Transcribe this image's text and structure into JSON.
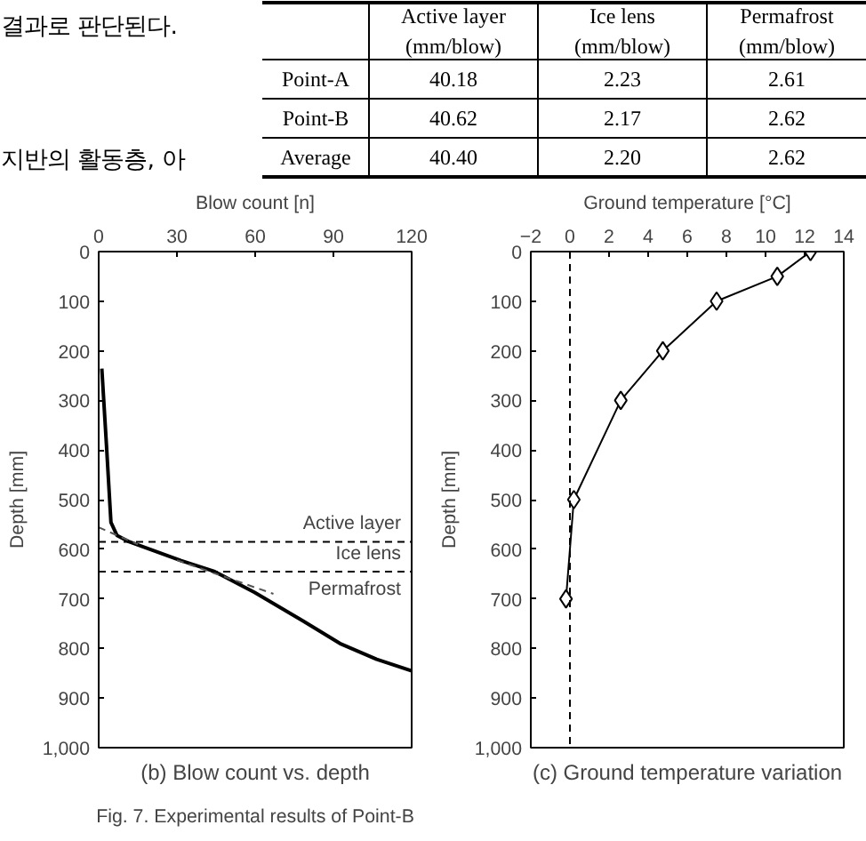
{
  "chart_data": [
    {
      "type": "other",
      "categories": [
        "Active layer\n(mm/blow)",
        "Ice lens\n(mm/blow)",
        "Permafrost\n(mm/blow)"
      ],
      "y_categories": [
        "Point-A",
        "Point-B",
        "Average"
      ],
      "cell_labels": [
        [
          "40.18",
          "2.23",
          "2.61"
        ],
        [
          "40.62",
          "2.17",
          "2.62"
        ],
        [
          "40.40",
          "2.20",
          "2.62"
        ]
      ],
      "annotations": [
        "결과로 판단된다.",
        "지반의 활동층, 아"
      ]
    },
    {
      "type": "line",
      "title": "(b) Blow count vs. depth",
      "xlabel": "Blow count [n]",
      "ylabel": "Depth [mm]",
      "xlim": [
        0,
        120
      ],
      "xticks": [
        0,
        30,
        60,
        90,
        120
      ],
      "ylim": [
        1000,
        0
      ],
      "yticks": [
        0,
        100,
        200,
        300,
        400,
        500,
        600,
        700,
        800,
        900,
        {
          "value": 1000,
          "label": "1,000"
        }
      ],
      "series": [
        {
          "color": "#000000",
          "x": [
            1.2,
            3,
            4.7,
            7,
            11.7,
            31.6,
            44.5,
            59.7,
            78.5,
            92.5,
            106.6,
            120
          ],
          "values": [
            236,
            392,
            546,
            572,
            585,
            623,
            645,
            687,
            745,
            790,
            822,
            845
          ]
        },
        {
          "color": "#555555",
          "line_style": "dashed",
          "x": [
            0,
            15
          ],
          "values": [
            556,
            590
          ]
        },
        {
          "color": "#555555",
          "line_style": "dashed",
          "x": [
            30,
            67
          ],
          "values": [
            622,
            690
          ]
        }
      ],
      "ref_lines": [
        {
          "axis": "y",
          "value": 585,
          "line_style": "dashed",
          "color": "#000000"
        },
        {
          "axis": "y",
          "value": 645,
          "line_style": "dashed",
          "color": "#000000"
        }
      ],
      "annotations": [
        "Active layer",
        "Ice lens",
        "Permafrost",
        "Fig. 7. Experimental results of Point-B"
      ],
      "grid": false,
      "marker": "none"
    },
    {
      "type": "line",
      "title": "(c) Ground temperature variation",
      "xlabel": "Ground temperature [°C]",
      "ylabel": "Depth [mm]",
      "xlim": [
        -2,
        14
      ],
      "xticks": [
        -2,
        0,
        2,
        4,
        6,
        8,
        10,
        12,
        14
      ],
      "ylim": [
        1000,
        0
      ],
      "yticks": [
        0,
        100,
        200,
        300,
        400,
        500,
        600,
        700,
        800,
        900,
        {
          "value": 1000,
          "label": "1,000"
        }
      ],
      "series": [
        {
          "color": "#000000",
          "x": [
            12.3,
            10.6,
            7.5,
            4.75,
            2.6,
            0.2,
            -0.2
          ],
          "values": [
            0,
            50,
            100,
            200,
            300,
            500,
            700
          ]
        }
      ],
      "ref_lines": [
        {
          "axis": "x",
          "value": 0,
          "line_style": "dashed",
          "color": "#000000"
        }
      ],
      "grid": false,
      "marker": "diamond"
    }
  ]
}
